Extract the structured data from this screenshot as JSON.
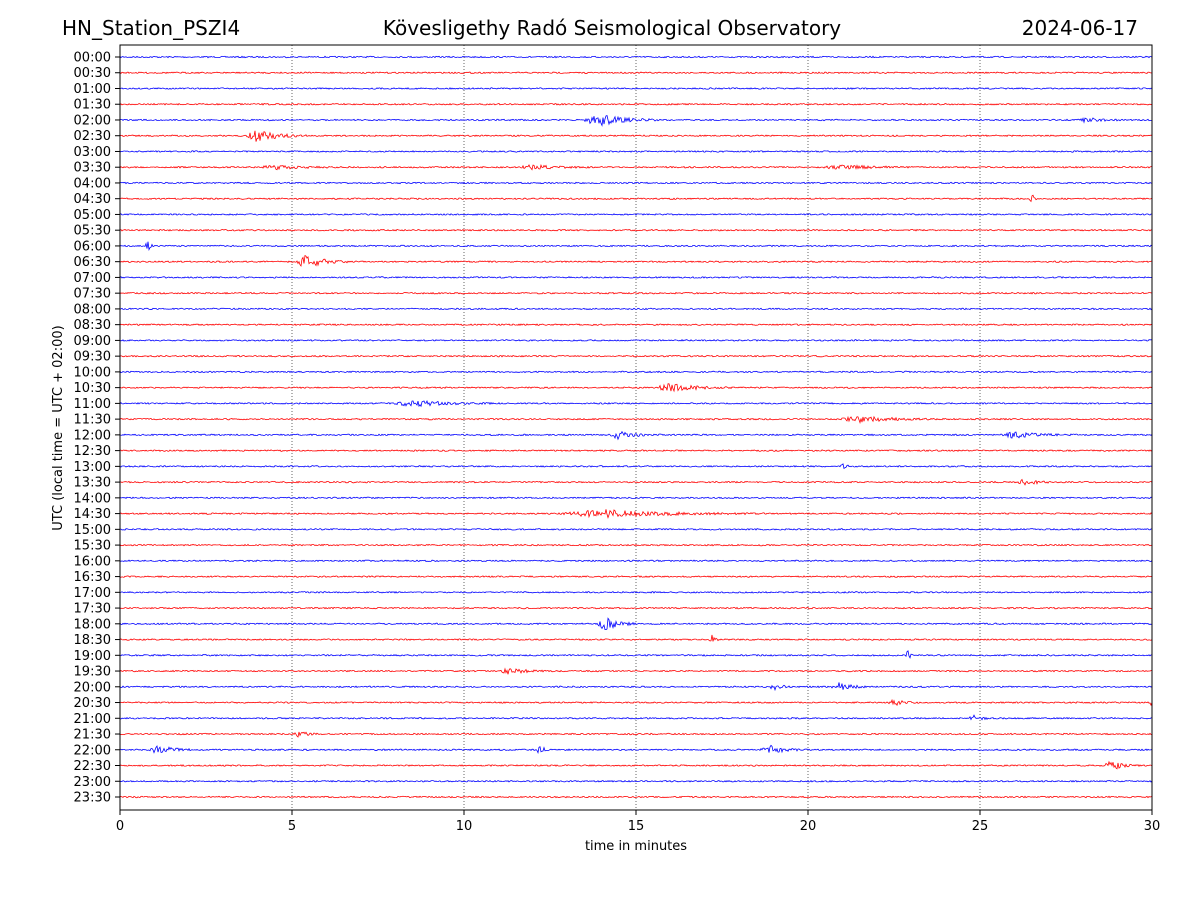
{
  "chart_data": {
    "type": "line",
    "title_left": "HN_Station_PSZI4",
    "title_center": "Kövesligethy Radó Seismological Observatory",
    "title_right": "2024-06-17",
    "xlabel": "time in minutes",
    "ylabel": "UTC (local time = UTC + 02:00)",
    "xlim": [
      0,
      30
    ],
    "xticks": [
      "0",
      "5",
      "10",
      "15",
      "20",
      "25",
      "30"
    ],
    "grid": "vertical dotted at x ticks",
    "colors": [
      "#0000ff",
      "#ff0000"
    ],
    "rows": [
      "00:00",
      "00:30",
      "01:00",
      "01:30",
      "02:00",
      "02:30",
      "03:00",
      "03:30",
      "04:00",
      "04:30",
      "05:00",
      "05:30",
      "06:00",
      "06:30",
      "07:00",
      "07:30",
      "08:00",
      "08:30",
      "09:00",
      "09:30",
      "10:00",
      "10:30",
      "11:00",
      "11:30",
      "12:00",
      "12:30",
      "13:00",
      "13:30",
      "14:00",
      "14:30",
      "15:00",
      "15:30",
      "16:00",
      "16:30",
      "17:00",
      "17:30",
      "18:00",
      "18:30",
      "19:00",
      "19:30",
      "20:00",
      "20:30",
      "21:00",
      "21:30",
      "22:00",
      "22:30",
      "23:00",
      "23:30"
    ],
    "events": [
      {
        "row": 4,
        "t": 13.9,
        "amp": 6,
        "dur": 1.5
      },
      {
        "row": 4,
        "t": 28,
        "amp": 3,
        "dur": 1
      },
      {
        "row": 5,
        "t": 4,
        "amp": 7,
        "dur": 1.2
      },
      {
        "row": 7,
        "t": 4.5,
        "amp": 2,
        "dur": 1.5
      },
      {
        "row": 7,
        "t": 12,
        "amp": 2,
        "dur": 1.5
      },
      {
        "row": 7,
        "t": 21,
        "amp": 2,
        "dur": 2
      },
      {
        "row": 9,
        "t": 26.5,
        "amp": 5,
        "dur": 0.2
      },
      {
        "row": 12,
        "t": 0.8,
        "amp": 8,
        "dur": 0.2
      },
      {
        "row": 13,
        "t": 5.4,
        "amp": 7,
        "dur": 1
      },
      {
        "row": 21,
        "t": 16,
        "amp": 4,
        "dur": 1.5
      },
      {
        "row": 22,
        "t": 8.5,
        "amp": 3,
        "dur": 2
      },
      {
        "row": 23,
        "t": 21.5,
        "amp": 3,
        "dur": 2
      },
      {
        "row": 24,
        "t": 14.5,
        "amp": 4,
        "dur": 1
      },
      {
        "row": 24,
        "t": 26,
        "amp": 3,
        "dur": 1.5
      },
      {
        "row": 26,
        "t": 21,
        "amp": 5,
        "dur": 0.2
      },
      {
        "row": 27,
        "t": 26.3,
        "amp": 3,
        "dur": 0.8
      },
      {
        "row": 29,
        "t": 14,
        "amp": 4,
        "dur": 4
      },
      {
        "row": 36,
        "t": 14.1,
        "amp": 7,
        "dur": 0.8
      },
      {
        "row": 37,
        "t": 17.2,
        "amp": 5,
        "dur": 0.2
      },
      {
        "row": 38,
        "t": 22.9,
        "amp": 5,
        "dur": 0.2
      },
      {
        "row": 39,
        "t": 11.3,
        "amp": 3,
        "dur": 1
      },
      {
        "row": 40,
        "t": 19,
        "amp": 4,
        "dur": 0.5
      },
      {
        "row": 40,
        "t": 20.9,
        "amp": 4,
        "dur": 0.8
      },
      {
        "row": 41,
        "t": 22.5,
        "amp": 3,
        "dur": 0.6
      },
      {
        "row": 41,
        "t": 30,
        "amp": 3,
        "dur": 0.3
      },
      {
        "row": 42,
        "t": 24.8,
        "amp": 3,
        "dur": 0.5
      },
      {
        "row": 43,
        "t": 5.2,
        "amp": 3,
        "dur": 0.5
      },
      {
        "row": 44,
        "t": 1.1,
        "amp": 4,
        "dur": 1
      },
      {
        "row": 44,
        "t": 12.2,
        "amp": 4,
        "dur": 0.4
      },
      {
        "row": 44,
        "t": 18.9,
        "amp": 4,
        "dur": 1
      },
      {
        "row": 45,
        "t": 28.8,
        "amp": 5,
        "dur": 0.7
      }
    ]
  }
}
